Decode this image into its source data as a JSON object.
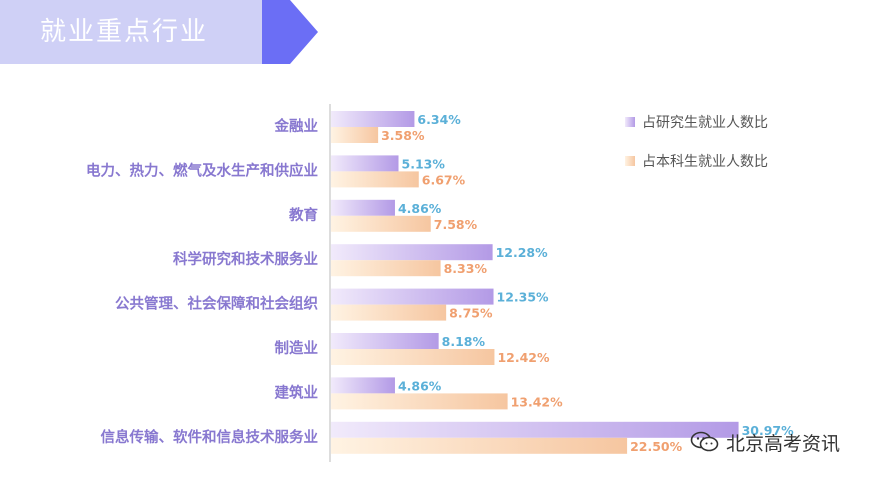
{
  "header": {
    "title": "就业重点行业"
  },
  "watermark": {
    "text": "北京高考资讯",
    "icon": "wechat-icon"
  },
  "colors": {
    "banner_light": "#cfd0f6",
    "banner_accent": "#6b6ef5",
    "grad_bar_dark": "#b39ae6",
    "grad_bar_light": "#f1eafb",
    "ug_bar_dark": "#f6c6a0",
    "ug_bar_light": "#fff3e3",
    "category_text": "#8878d0",
    "grad_value_text": "#5bb0d8",
    "ug_value_text": "#f0a070"
  },
  "chart_data": {
    "type": "bar",
    "orientation": "horizontal",
    "title": "",
    "xlabel": "",
    "ylabel": "",
    "xlim": [
      0,
      32
    ],
    "grid": false,
    "legend_position": "top-right",
    "categories": [
      "金融业",
      "电力、热力、燃气及水生产和供应业",
      "教育",
      "科学研究和技术服务业",
      "公共管理、社会保障和社会组织",
      "制造业",
      "建筑业",
      "信息传输、软件和信息技术服务业"
    ],
    "series": [
      {
        "name": "占研究生就业人数比",
        "values": [
          6.34,
          5.13,
          4.86,
          12.28,
          12.35,
          8.18,
          4.86,
          30.97
        ]
      },
      {
        "name": "占本科生就业人数比",
        "values": [
          3.58,
          6.67,
          7.58,
          8.33,
          8.75,
          12.42,
          13.42,
          22.5
        ]
      }
    ],
    "value_labels": [
      [
        "6.34%",
        "5.13%",
        "4.86%",
        "12.28%",
        "12.35%",
        "8.18%",
        "4.86%",
        "30.97%"
      ],
      [
        "3.58%",
        "6.67%",
        "7.58%",
        "8.33%",
        "8.75%",
        "12.42%",
        "13.42%",
        "22.50%"
      ]
    ]
  }
}
